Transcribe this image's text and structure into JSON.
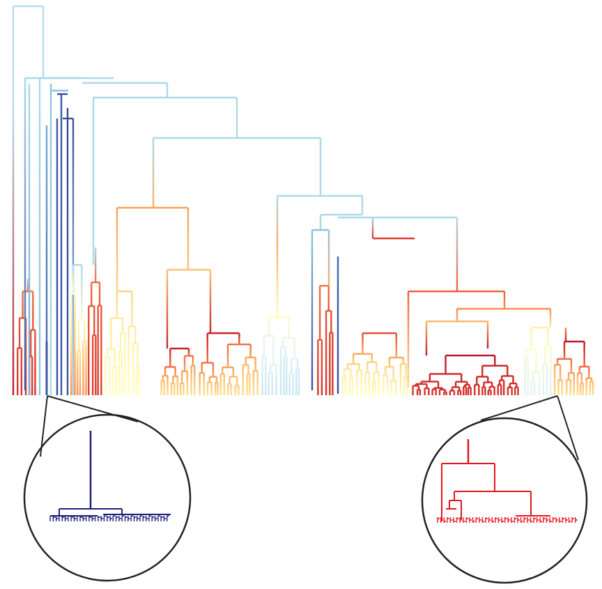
{
  "figure": {
    "type": "dendrogram",
    "colormap": [
      "#313695",
      "#4575b4",
      "#74add1",
      "#abd9e9",
      "#e0f3f8",
      "#ffffbf",
      "#fee090",
      "#fdae61",
      "#f46d43",
      "#d73027",
      "#a50026"
    ],
    "insets": [
      {
        "id": "left-inset",
        "color": "#1f1f7a"
      },
      {
        "id": "right-inset",
        "color": "#e5141f"
      }
    ],
    "line_color": "#222222"
  }
}
